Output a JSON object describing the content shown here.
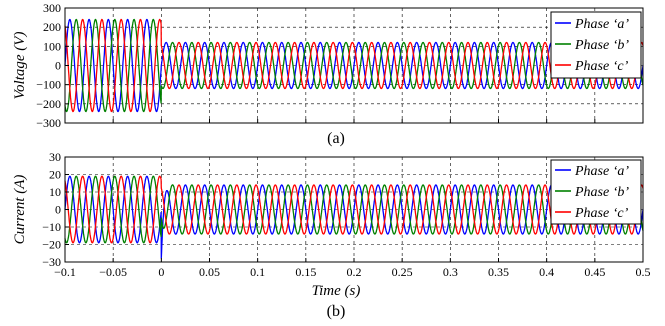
{
  "chart_data": [
    {
      "type": "line",
      "panel_label": "(a)",
      "xlabel": "",
      "ylabel": "Voltage (V)",
      "xlim": [
        -0.1,
        0.5
      ],
      "ylim": [
        -300,
        300
      ],
      "x_ticks": [
        -0.1,
        -0.05,
        0,
        0.05,
        0.1,
        0.15,
        0.2,
        0.25,
        0.3,
        0.35,
        0.4,
        0.45,
        0.5
      ],
      "x_tick_labels": [
        "",
        "",
        "",
        "",
        "",
        "",
        "",
        "",
        "",
        "",
        "",
        "",
        ""
      ],
      "y_ticks": [
        300,
        200,
        100,
        0,
        -100,
        -200,
        -300
      ],
      "y_tick_labels": [
        "300",
        "200",
        "100",
        "0",
        "−100",
        "−200",
        "−300"
      ],
      "grid": true,
      "legend_position": "top-right",
      "signal": {
        "frequency_hz": 50,
        "amplitude_before": 240,
        "amplitude_after": 120,
        "switch_time": 0
      },
      "series": [
        {
          "name": "Phase ‘a’",
          "color": "#0000ff",
          "phase_deg": 0
        },
        {
          "name": "Phase ‘b’",
          "color": "#008000",
          "phase_deg": -120
        },
        {
          "name": "Phase ‘c’",
          "color": "#ff0000",
          "phase_deg": 120
        }
      ]
    },
    {
      "type": "line",
      "panel_label": "(b)",
      "xlabel": "Time (s)",
      "ylabel": "Current (A)",
      "xlim": [
        -0.1,
        0.5
      ],
      "ylim": [
        -30,
        30
      ],
      "x_ticks": [
        -0.1,
        -0.05,
        0,
        0.05,
        0.1,
        0.15,
        0.2,
        0.25,
        0.3,
        0.35,
        0.4,
        0.45,
        0.5
      ],
      "x_tick_labels": [
        "−0.1",
        "−0.05",
        "0",
        "0.05",
        "0.1",
        "0.15",
        "0.2",
        "0.25",
        "0.3",
        "0.35",
        "0.4",
        "0.45",
        "0.5"
      ],
      "y_ticks": [
        30,
        20,
        10,
        0,
        -10,
        -20,
        -30
      ],
      "y_tick_labels": [
        "30",
        "20",
        "10",
        "0",
        "−10",
        "−20",
        "−30"
      ],
      "grid": true,
      "legend_position": "top-right",
      "signal": {
        "frequency_hz": 50,
        "amplitude_before": 19,
        "amplitude_after": 14,
        "switch_time": 0,
        "transient_peak": -28
      },
      "series": [
        {
          "name": "Phase ‘a’",
          "color": "#0000ff",
          "phase_deg": 0
        },
        {
          "name": "Phase ‘b’",
          "color": "#008000",
          "phase_deg": -120
        },
        {
          "name": "Phase ‘c’",
          "color": "#ff0000",
          "phase_deg": 120
        }
      ]
    }
  ]
}
